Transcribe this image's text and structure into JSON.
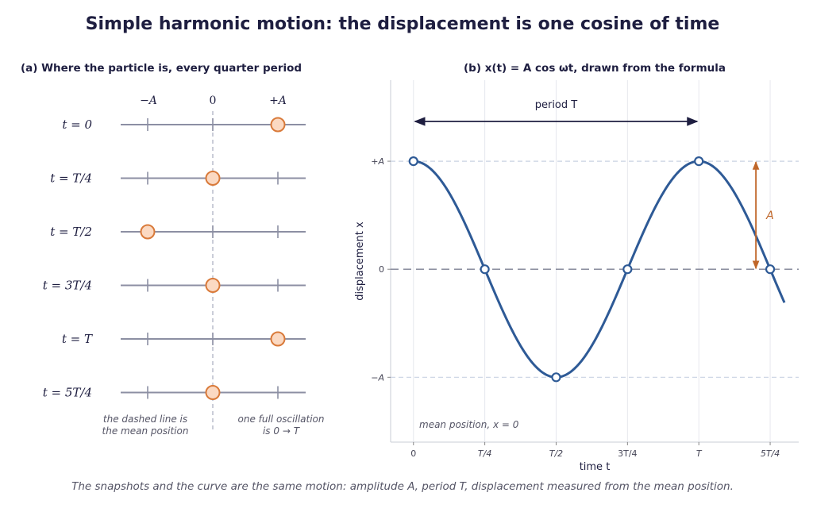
{
  "title": "Simple harmonic motion: the displacement is one cosine of time",
  "panel_a": {
    "title": "(a)  Where the particle is, every quarter period",
    "axis_labels": {
      "minus_a": "−A",
      "zero": "0",
      "plus_a": "+A"
    },
    "rows": [
      {
        "label": "t = 0",
        "position": 1
      },
      {
        "label": "t = T/4",
        "position": 0
      },
      {
        "label": "t = T/2",
        "position": -1
      },
      {
        "label": "t = 3T/4",
        "position": 0
      },
      {
        "label": "t = T",
        "position": 1
      },
      {
        "label": "t = 5T/4",
        "position": 0
      }
    ],
    "note_left": [
      "the dashed line is",
      "the mean position"
    ],
    "note_right": [
      "one full oscillation",
      "is 0 → T"
    ]
  },
  "panel_b": {
    "title": "(b)  x(t) = A cos ωt, drawn from the formula",
    "period_label": "period  T",
    "amplitude_label": "A",
    "mean_note": "mean position, x = 0",
    "colors": {
      "curve": "#2e5a96",
      "amplitude": "#c0672a",
      "particle_fill": "#fbd9c2",
      "particle_edge": "#d97a3a"
    }
  },
  "chart_data": {
    "type": "line",
    "function": "x(t) = A cos ωt",
    "x_tick_labels": [
      "0",
      "T/4",
      "T/2",
      "3T/4",
      "T",
      "5T/4"
    ],
    "y_tick_labels": [
      "−A",
      "0",
      "+A"
    ],
    "xlabel": "time t",
    "ylabel": "displacement x",
    "xlim": [
      -0.08,
      1.35
    ],
    "ylim": [
      -1.6,
      1.75
    ],
    "x_range_curve": [
      0,
      1.3
    ],
    "markers": [
      {
        "t": 0,
        "x": 1
      },
      {
        "t": 0.25,
        "x": 0
      },
      {
        "t": 0.5,
        "x": -1
      },
      {
        "t": 0.75,
        "x": 0
      },
      {
        "t": 1,
        "x": 1
      },
      {
        "t": 1.25,
        "x": 0
      }
    ],
    "grid": true
  },
  "caption": "The snapshots and the curve are the same motion: amplitude A, period T, displacement measured from the mean position."
}
